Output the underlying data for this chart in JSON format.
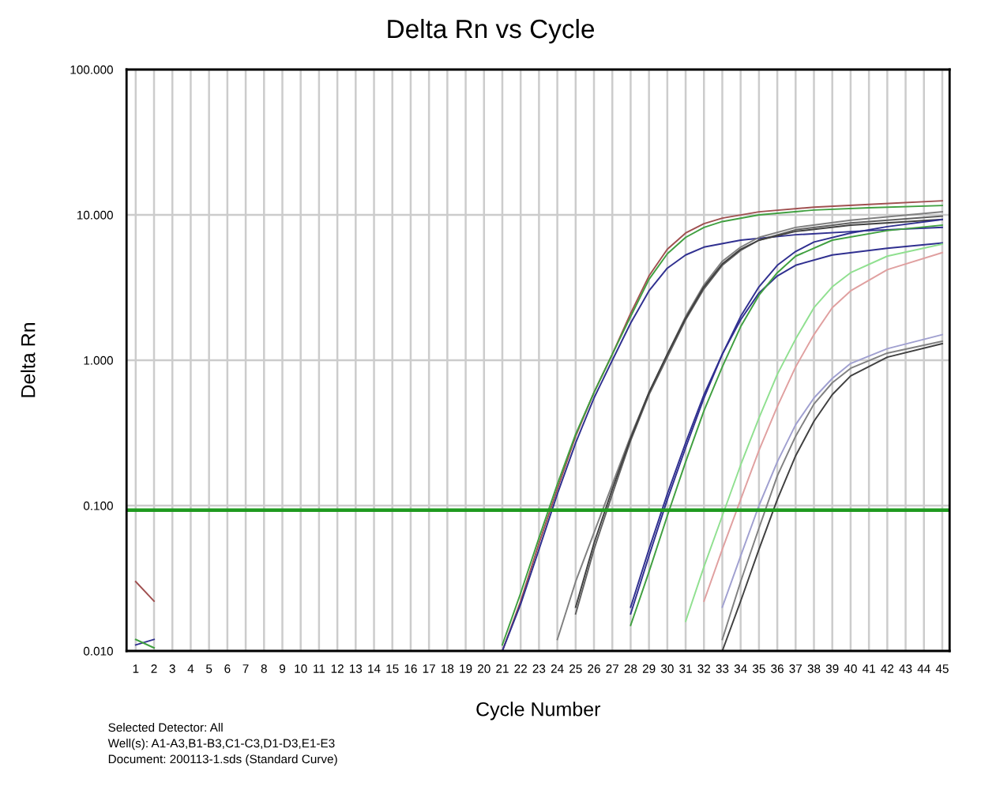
{
  "chart_data": {
    "type": "line",
    "title": "Delta Rn vs Cycle",
    "xlabel": "Cycle Number",
    "ylabel": "Delta Rn",
    "log": "y",
    "grid": true,
    "marker": "none",
    "line_style": "solid",
    "xlim": [
      0.5,
      45.4
    ],
    "xticks": [
      1,
      2,
      3,
      4,
      5,
      6,
      7,
      8,
      9,
      10,
      11,
      12,
      13,
      14,
      15,
      16,
      17,
      18,
      19,
      20,
      21,
      22,
      23,
      24,
      25,
      26,
      27,
      28,
      29,
      30,
      31,
      32,
      33,
      34,
      35,
      36,
      37,
      38,
      39,
      40,
      41,
      42,
      43,
      44,
      45
    ],
    "ylim": [
      0.01,
      100
    ],
    "yticks": [
      {
        "value": 0.01,
        "label": "0.010"
      },
      {
        "value": 0.1,
        "label": "0.100"
      },
      {
        "value": 1,
        "label": "1.000"
      },
      {
        "value": 10,
        "label": "10.000"
      },
      {
        "value": 100,
        "label": "100.000"
      }
    ],
    "ref_lines": [
      {
        "axis": "y",
        "value": 0.093,
        "label": null,
        "color": "#1f9a1f"
      }
    ],
    "series": [
      {
        "color": "#a05050",
        "x": [
          1,
          2
        ],
        "values": [
          0.03,
          0.022
        ]
      },
      {
        "color": "#303090",
        "x": [
          1,
          2
        ],
        "values": [
          0.011,
          0.012
        ]
      },
      {
        "color": "#40a040",
        "x": [
          1,
          2
        ],
        "values": [
          0.012,
          0.0105
        ]
      },
      {
        "color": "#a05050",
        "x": [
          21,
          22,
          23,
          24,
          25,
          26,
          27,
          28,
          29,
          30,
          31,
          32,
          33,
          35,
          38,
          41,
          45
        ],
        "values": [
          0.01,
          0.022,
          0.055,
          0.13,
          0.3,
          0.6,
          1.1,
          2.1,
          3.8,
          5.8,
          7.5,
          8.7,
          9.5,
          10.5,
          11.3,
          11.8,
          12.5
        ]
      },
      {
        "color": "#40a040",
        "x": [
          21,
          22,
          23,
          24,
          25,
          26,
          27,
          28,
          29,
          30,
          31,
          32,
          33,
          35,
          38,
          41,
          45
        ],
        "values": [
          0.011,
          0.025,
          0.06,
          0.14,
          0.31,
          0.6,
          1.1,
          2.0,
          3.6,
          5.4,
          7.0,
          8.2,
          9.0,
          10.0,
          10.8,
          11.2,
          11.6
        ]
      },
      {
        "color": "#303090",
        "x": [
          21,
          22,
          23,
          24,
          25,
          26,
          27,
          28,
          29,
          30,
          31,
          32,
          34,
          37,
          41,
          45
        ],
        "values": [
          0.01,
          0.021,
          0.05,
          0.12,
          0.27,
          0.55,
          1.0,
          1.8,
          3.0,
          4.3,
          5.3,
          6.0,
          6.7,
          7.3,
          7.8,
          8.2
        ]
      },
      {
        "color": "#808080",
        "x": [
          24,
          25,
          26,
          27,
          28,
          29,
          30,
          31,
          32,
          33,
          34,
          35,
          37,
          40,
          45
        ],
        "values": [
          0.012,
          0.03,
          0.065,
          0.14,
          0.3,
          0.6,
          1.1,
          2.0,
          3.3,
          4.8,
          6.0,
          7.0,
          8.2,
          9.2,
          10.5
        ]
      },
      {
        "color": "#606060",
        "x": [
          25,
          26,
          27,
          28,
          29,
          30,
          31,
          32,
          33,
          34,
          35,
          37,
          40,
          45
        ],
        "values": [
          0.018,
          0.05,
          0.12,
          0.28,
          0.58,
          1.05,
          1.9,
          3.1,
          4.5,
          5.7,
          6.7,
          7.9,
          8.8,
          9.8
        ]
      },
      {
        "color": "#404040",
        "x": [
          25,
          26,
          27,
          28,
          29,
          30,
          31,
          32,
          33,
          34,
          35,
          37,
          40,
          45
        ],
        "values": [
          0.02,
          0.055,
          0.13,
          0.29,
          0.6,
          1.1,
          1.95,
          3.2,
          4.6,
          5.8,
          6.7,
          7.7,
          8.5,
          9.3
        ]
      },
      {
        "color": "#303090",
        "x": [
          28,
          29,
          30,
          31,
          32,
          33,
          34,
          35,
          36,
          37,
          38,
          40,
          42,
          45
        ],
        "values": [
          0.018,
          0.045,
          0.11,
          0.25,
          0.55,
          1.1,
          2.0,
          3.2,
          4.5,
          5.6,
          6.5,
          7.5,
          8.3,
          9.3
        ]
      },
      {
        "color": "#303090",
        "x": [
          28,
          29,
          30,
          31,
          32,
          33,
          34,
          35,
          36,
          37,
          39,
          42,
          45
        ],
        "values": [
          0.02,
          0.05,
          0.12,
          0.27,
          0.58,
          1.1,
          1.9,
          2.9,
          3.8,
          4.5,
          5.3,
          5.9,
          6.4
        ]
      },
      {
        "color": "#40a040",
        "x": [
          28,
          29,
          30,
          31,
          32,
          33,
          34,
          35,
          36,
          37,
          39,
          42,
          45
        ],
        "values": [
          0.015,
          0.035,
          0.085,
          0.2,
          0.45,
          0.9,
          1.7,
          2.8,
          4.0,
          5.2,
          6.7,
          7.8,
          8.5
        ]
      },
      {
        "color": "#90e090",
        "x": [
          31,
          32,
          33,
          34,
          35,
          36,
          37,
          38,
          39,
          40,
          42,
          45
        ],
        "values": [
          0.016,
          0.038,
          0.085,
          0.19,
          0.4,
          0.8,
          1.4,
          2.3,
          3.2,
          4.0,
          5.2,
          6.3
        ]
      },
      {
        "color": "#e0a0a0",
        "x": [
          32,
          33,
          34,
          35,
          36,
          37,
          38,
          39,
          40,
          42,
          45
        ],
        "values": [
          0.022,
          0.05,
          0.11,
          0.24,
          0.48,
          0.9,
          1.5,
          2.3,
          3.0,
          4.2,
          5.5
        ]
      },
      {
        "color": "#a0a0d0",
        "x": [
          33,
          34,
          35,
          36,
          37,
          38,
          39,
          40,
          42,
          45
        ],
        "values": [
          0.02,
          0.045,
          0.1,
          0.2,
          0.36,
          0.55,
          0.75,
          0.95,
          1.2,
          1.5
        ]
      },
      {
        "color": "#808080",
        "x": [
          33,
          34,
          35,
          36,
          37,
          38,
          39,
          40,
          42,
          45
        ],
        "values": [
          0.012,
          0.03,
          0.07,
          0.16,
          0.3,
          0.5,
          0.7,
          0.88,
          1.12,
          1.35
        ]
      },
      {
        "color": "#404040",
        "x": [
          33,
          34,
          35,
          36,
          37,
          38,
          39,
          40,
          42,
          45
        ],
        "values": [
          0.01,
          0.022,
          0.05,
          0.11,
          0.22,
          0.38,
          0.58,
          0.78,
          1.05,
          1.3
        ]
      }
    ],
    "annotations": [
      "Selected Detector: All",
      "Well(s): A1-A3,B1-B3,C1-C3,D1-D3,E1-E3",
      "Document: 200113-1.sds (Standard Curve)"
    ]
  }
}
